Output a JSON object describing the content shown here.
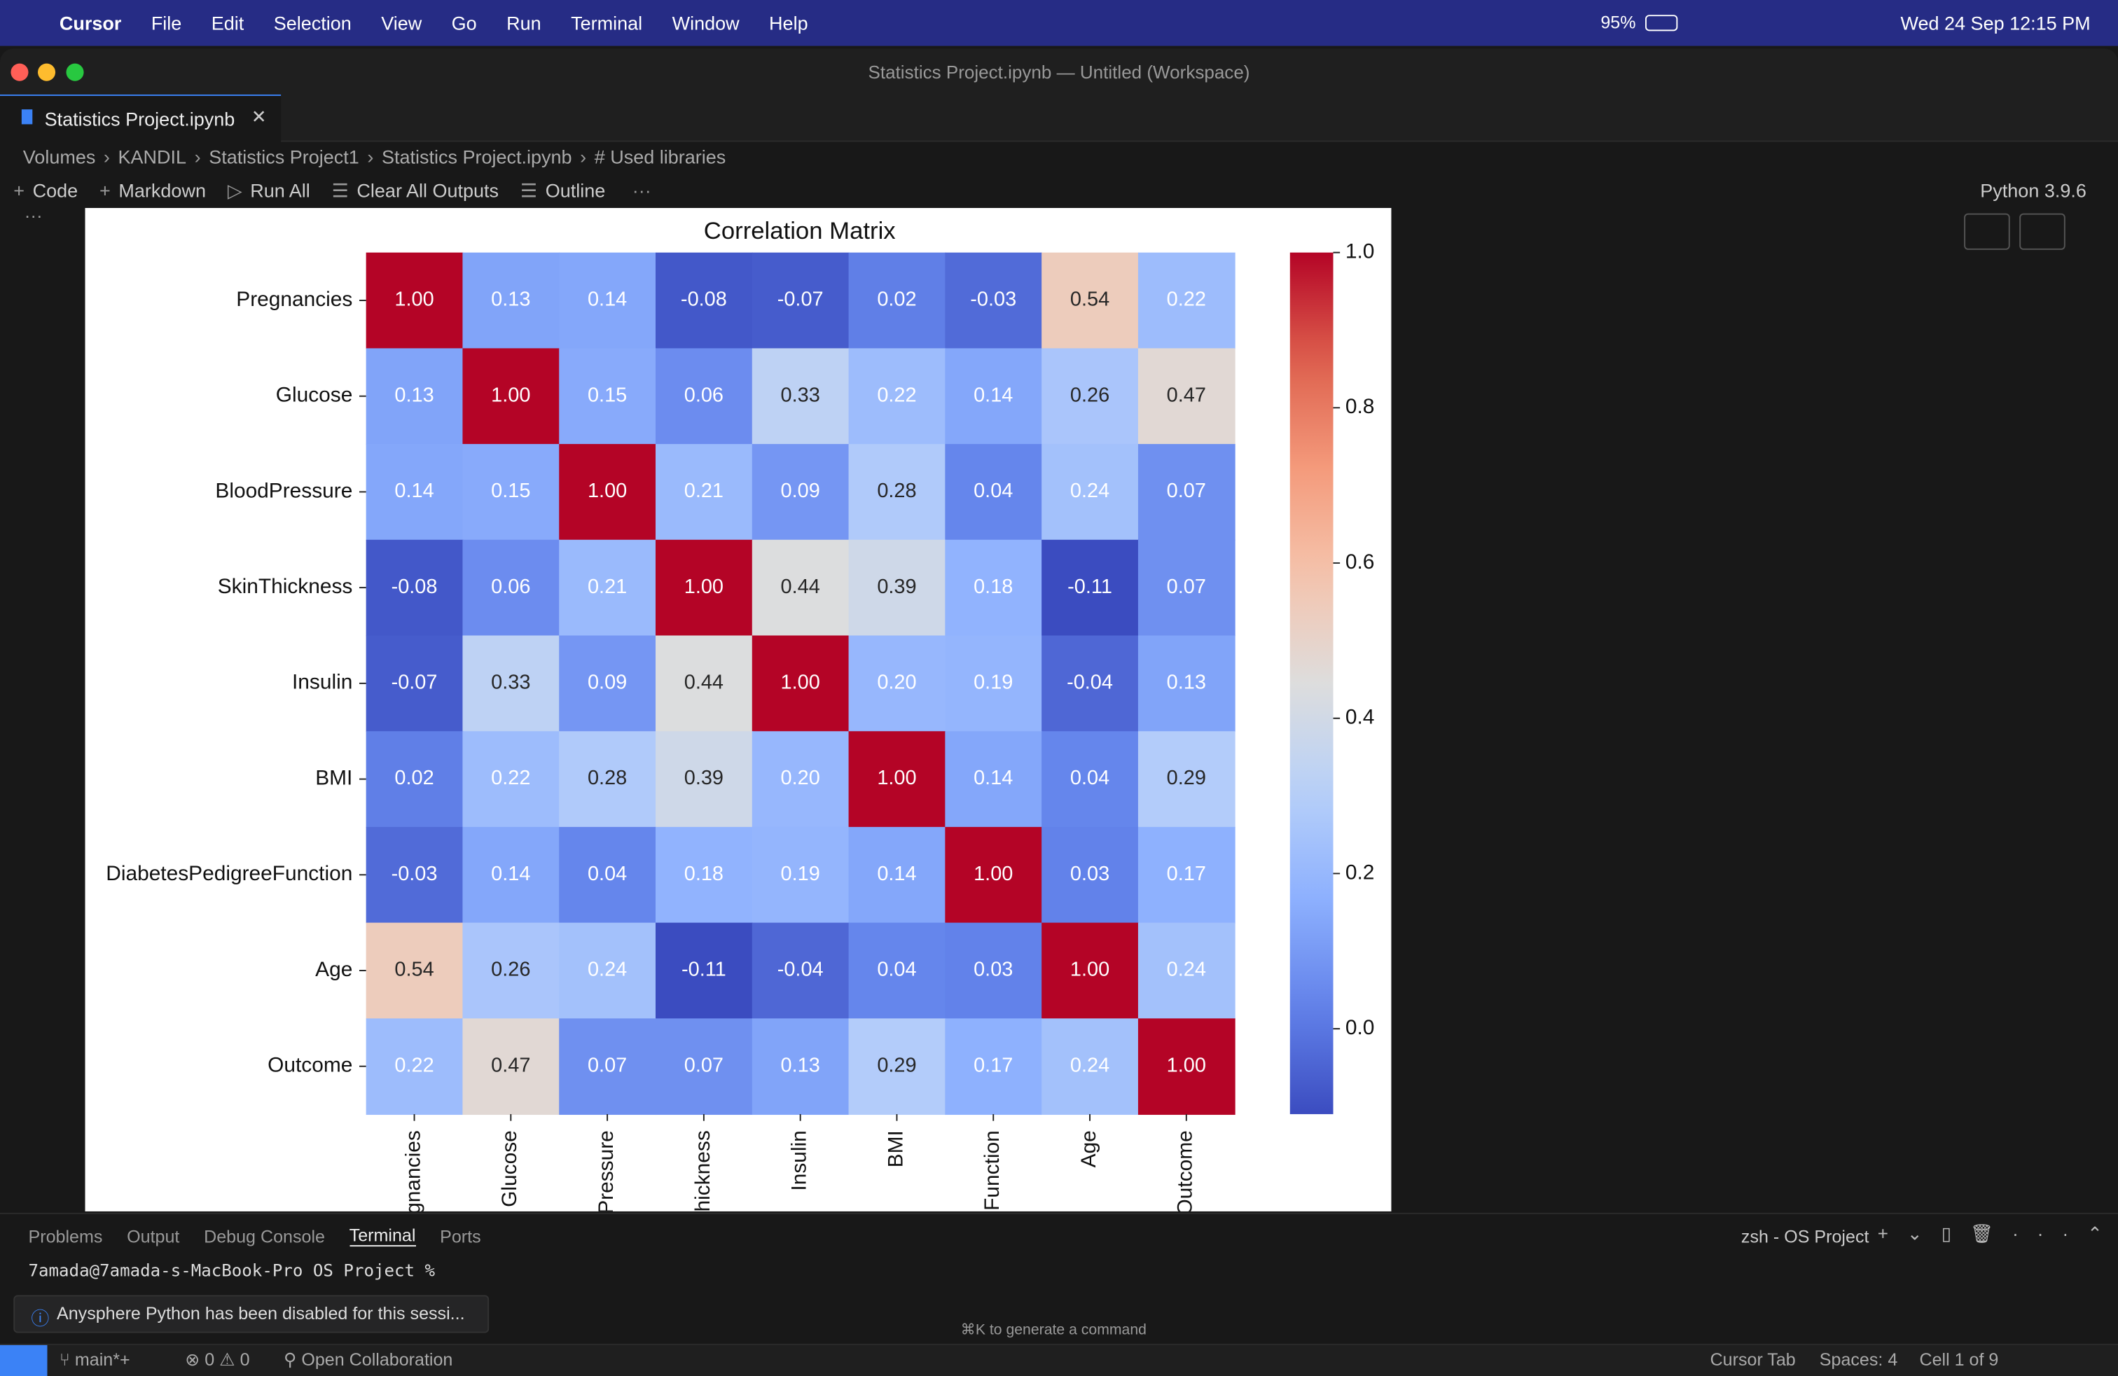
{
  "menu_bar": {
    "app": "Cursor",
    "items": [
      "File",
      "Edit",
      "Selection",
      "View",
      "Go",
      "Run",
      "Terminal",
      "Window",
      "Help"
    ],
    "battery": "95%",
    "clock": "Wed 24 Sep  12:15 PM"
  },
  "window_title": "Statistics Project.ipynb — Untitled (Workspace)",
  "tab": "Statistics Project.ipynb",
  "breadcrumbs": [
    "Volumes",
    "KANDIL",
    "Statistics Project1",
    "Statistics Project.ipynb",
    "# Used libraries"
  ],
  "toolbar": [
    "Code",
    "Markdown",
    "Run All",
    "Clear All Outputs",
    "Outline"
  ],
  "kernel": "Python 3.9.6",
  "chart_data": {
    "type": "heatmap",
    "title": "Correlation Matrix",
    "y_categories": [
      "Pregnancies",
      "Glucose",
      "BloodPressure",
      "SkinThickness",
      "Insulin",
      "BMI",
      "DiabetesPedigreeFunction",
      "Age",
      "Outcome"
    ],
    "x_categories": [
      "gnancies",
      "Glucose",
      "Pressure",
      "hickness",
      "Insulin",
      "BMI",
      "Function",
      "Age",
      "Outcome"
    ],
    "values": [
      [
        1,
        0.13,
        0.14,
        -0.08,
        -0.07,
        0.02,
        -0.03,
        0.54,
        0.22
      ],
      [
        0.13,
        1,
        0.15,
        0.06,
        0.33,
        0.22,
        0.14,
        0.26,
        0.47
      ],
      [
        0.14,
        0.15,
        1,
        0.21,
        0.09,
        0.28,
        0.04,
        0.24,
        0.07
      ],
      [
        -0.08,
        0.06,
        0.21,
        1,
        0.44,
        0.39,
        0.18,
        -0.11,
        0.07
      ],
      [
        -0.07,
        0.33,
        0.09,
        0.44,
        1,
        0.2,
        0.19,
        -0.04,
        0.13
      ],
      [
        0.02,
        0.22,
        0.28,
        0.39,
        0.2,
        1,
        0.14,
        0.04,
        0.29
      ],
      [
        -0.03,
        0.14,
        0.04,
        0.18,
        0.19,
        0.14,
        1,
        0.03,
        0.17
      ],
      [
        0.54,
        0.26,
        0.24,
        -0.11,
        -0.04,
        0.04,
        0.03,
        1,
        0.24
      ],
      [
        0.22,
        0.47,
        0.07,
        0.07,
        0.13,
        0.29,
        0.17,
        0.24,
        1
      ]
    ],
    "value_labels": [
      [
        "1.00",
        "0.13",
        "0.14",
        "-0.08",
        "-0.07",
        "0.02",
        "-0.03",
        "0.54",
        "0.22"
      ],
      [
        "0.13",
        "1.00",
        "0.15",
        "0.06",
        "0.33",
        "0.22",
        "0.14",
        "0.26",
        "0.47"
      ],
      [
        "0.14",
        "0.15",
        "1.00",
        "0.21",
        "0.09",
        "0.28",
        "0.04",
        "0.24",
        "0.07"
      ],
      [
        "-0.08",
        "0.06",
        "0.21",
        "1.00",
        "0.44",
        "0.39",
        "0.18",
        "-0.11",
        "0.07"
      ],
      [
        "-0.07",
        "0.33",
        "0.09",
        "0.44",
        "1.00",
        "0.20",
        "0.19",
        "-0.04",
        "0.13"
      ],
      [
        "0.02",
        "0.22",
        "0.28",
        "0.39",
        "0.20",
        "1.00",
        "0.14",
        "0.04",
        "0.29"
      ],
      [
        "-0.03",
        "0.14",
        "0.04",
        "0.18",
        "0.19",
        "0.14",
        "1.00",
        "0.03",
        "0.17"
      ],
      [
        "0.54",
        "0.26",
        "0.24",
        "-0.11",
        "-0.04",
        "0.04",
        "0.03",
        "1.00",
        "0.24"
      ],
      [
        "0.22",
        "0.47",
        "0.07",
        "0.07",
        "0.13",
        "0.29",
        "0.17",
        "0.24",
        "1.00"
      ]
    ],
    "colormap": "coolwarm",
    "clim": [
      -0.11,
      1
    ],
    "cticks": [
      {
        "value": 0,
        "label": "0.0"
      },
      0.2,
      0.4,
      0.6,
      0.8,
      {
        "value": 1,
        "label": "1.0"
      }
    ]
  },
  "panel": {
    "tabs": [
      "Problems",
      "Output",
      "Debug Console",
      "Terminal",
      "Ports"
    ],
    "terminal_name": "zsh - OS Project",
    "prompt": "7amada@7amada-s-MacBook-Pro OS Project %",
    "notification": "Anysphere Python has been disabled for this sessi...",
    "hint": "⌘K to generate a command"
  },
  "status_bar": {
    "branch": "main*+",
    "errors": "0",
    "warnings": "0",
    "collab": "Open Collaboration",
    "cursor_tab": "Cursor Tab",
    "spaces": "Spaces: 4",
    "cell": "Cell 1 of 9"
  }
}
